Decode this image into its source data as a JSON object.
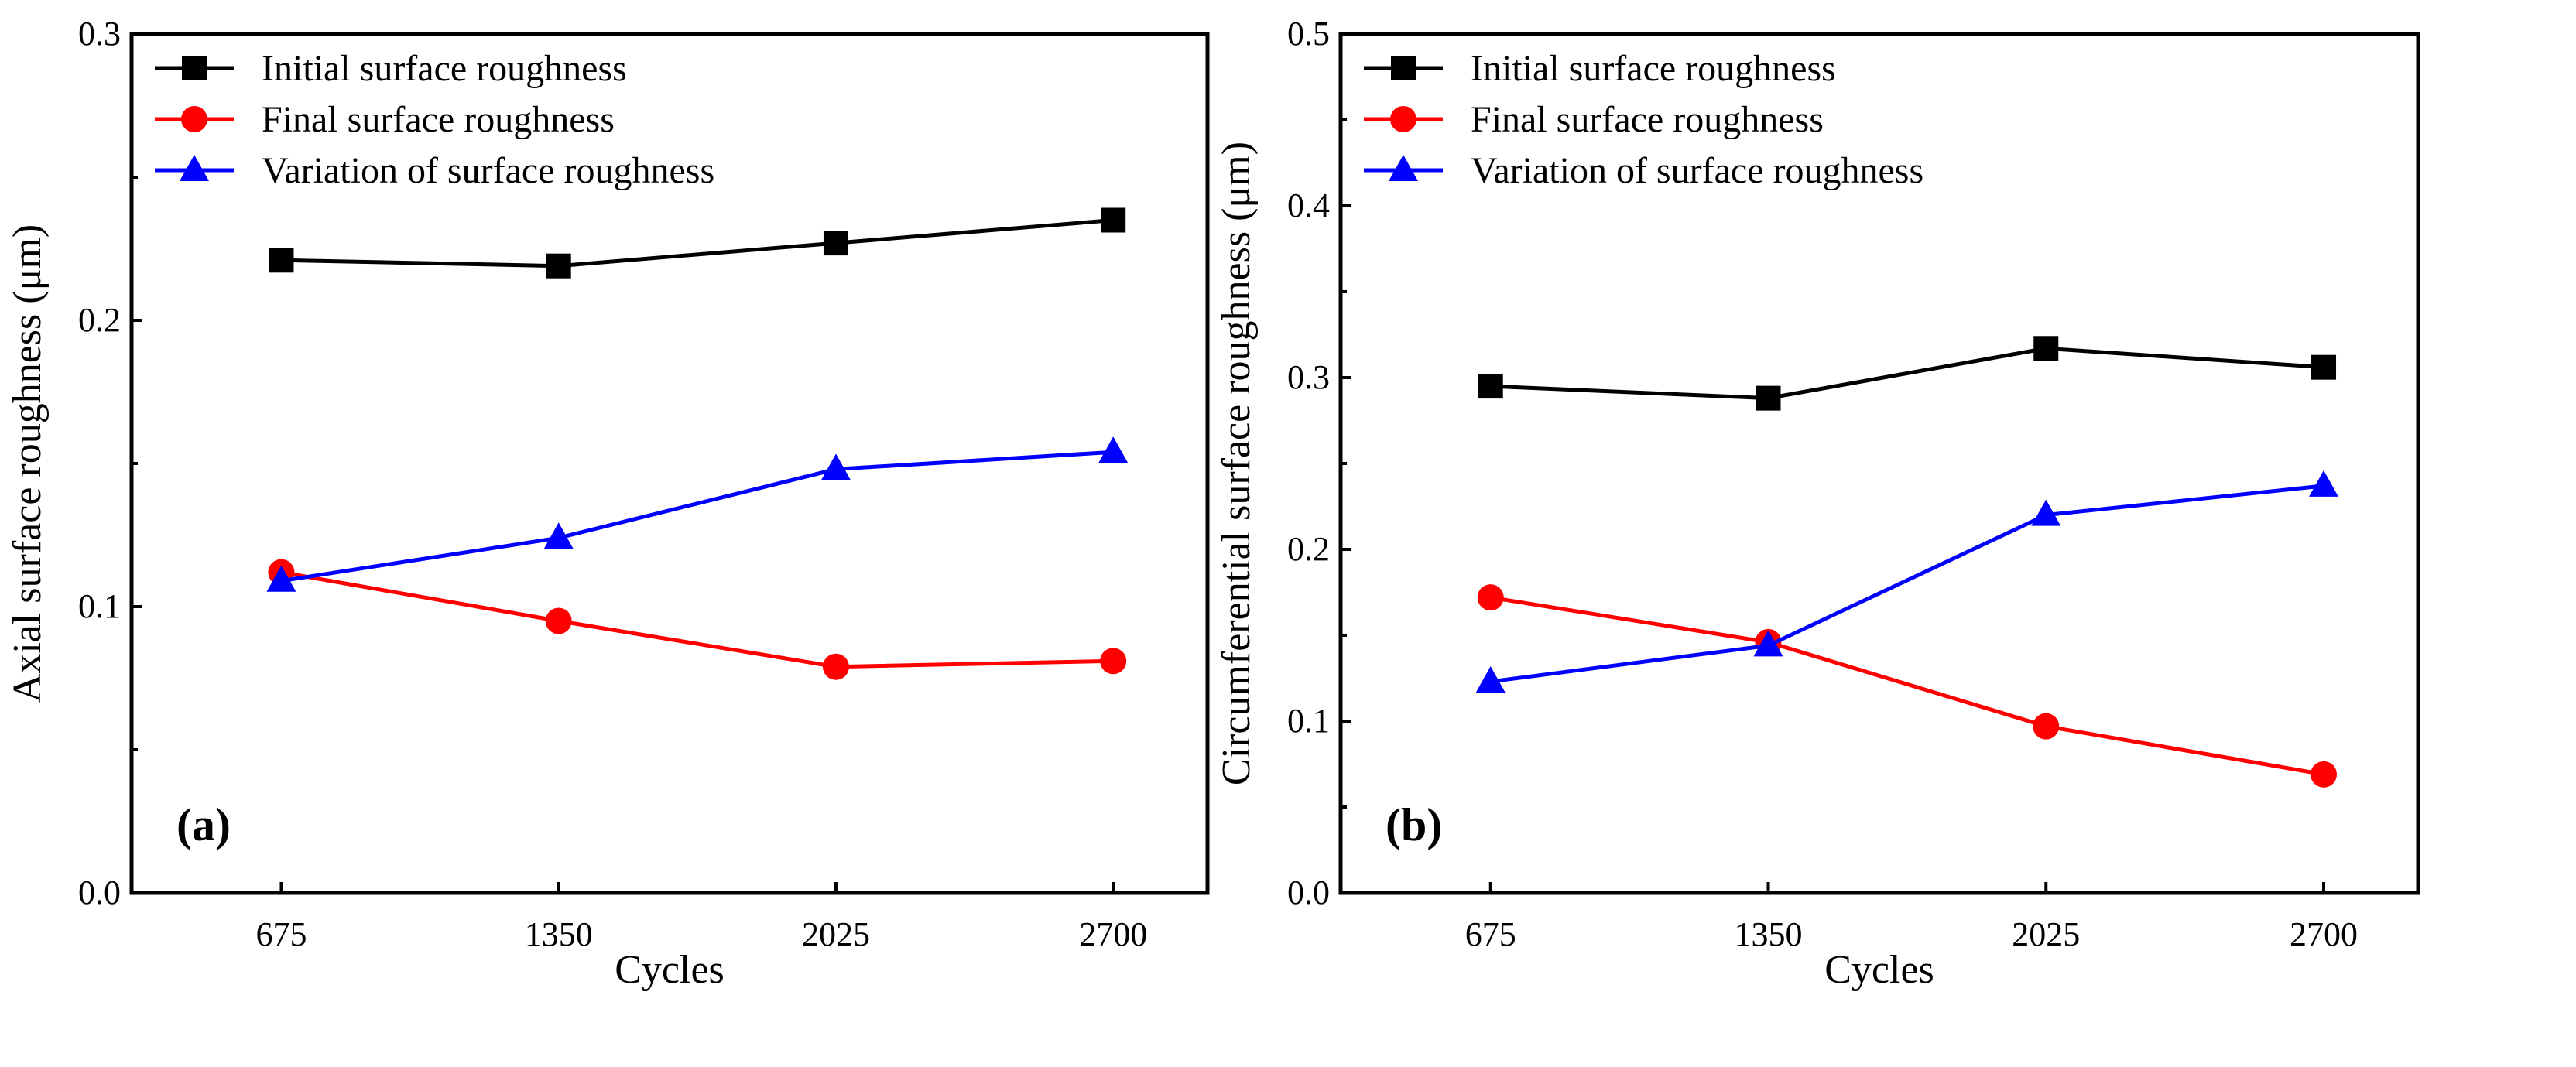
{
  "chart_data": [
    {
      "type": "line",
      "panel_label": "(a)",
      "xlabel": "Cycles",
      "ylabel": "Axial surface roughness (μm)",
      "categories": [
        "675",
        "1350",
        "2025",
        "2700"
      ],
      "yticks": [
        "0.0",
        "0.1",
        "0.2",
        "0.3"
      ],
      "ylim": [
        0,
        0.3
      ],
      "grid": false,
      "legend_position": "top-left",
      "series": [
        {
          "name": "Initial surface roughness",
          "color": "#000000",
          "marker": "square",
          "values": [
            0.221,
            0.219,
            0.227,
            0.235
          ]
        },
        {
          "name": "Final surface roughness",
          "color": "#ff0000",
          "marker": "circle",
          "values": [
            0.112,
            0.095,
            0.079,
            0.081
          ]
        },
        {
          "name": "Variation of surface roughness",
          "color": "#0000ff",
          "marker": "triangle",
          "values": [
            0.109,
            0.124,
            0.148,
            0.154
          ]
        }
      ]
    },
    {
      "type": "line",
      "panel_label": "(b)",
      "xlabel": "Cycles",
      "ylabel": "Circumferential surface roughness (μm)",
      "categories": [
        "675",
        "1350",
        "2025",
        "2700"
      ],
      "yticks": [
        "0.0",
        "0.1",
        "0.2",
        "0.3",
        "0.4",
        "0.5"
      ],
      "ylim": [
        0,
        0.5
      ],
      "grid": false,
      "legend_position": "top-left",
      "series": [
        {
          "name": "Initial surface roughness",
          "color": "#000000",
          "marker": "square",
          "values": [
            0.295,
            0.288,
            0.317,
            0.306
          ]
        },
        {
          "name": "Final surface roughness",
          "color": "#ff0000",
          "marker": "circle",
          "values": [
            0.172,
            0.146,
            0.097,
            0.069
          ]
        },
        {
          "name": "Variation of surface roughness",
          "color": "#0000ff",
          "marker": "triangle",
          "values": [
            0.123,
            0.144,
            0.22,
            0.237
          ]
        }
      ]
    }
  ]
}
